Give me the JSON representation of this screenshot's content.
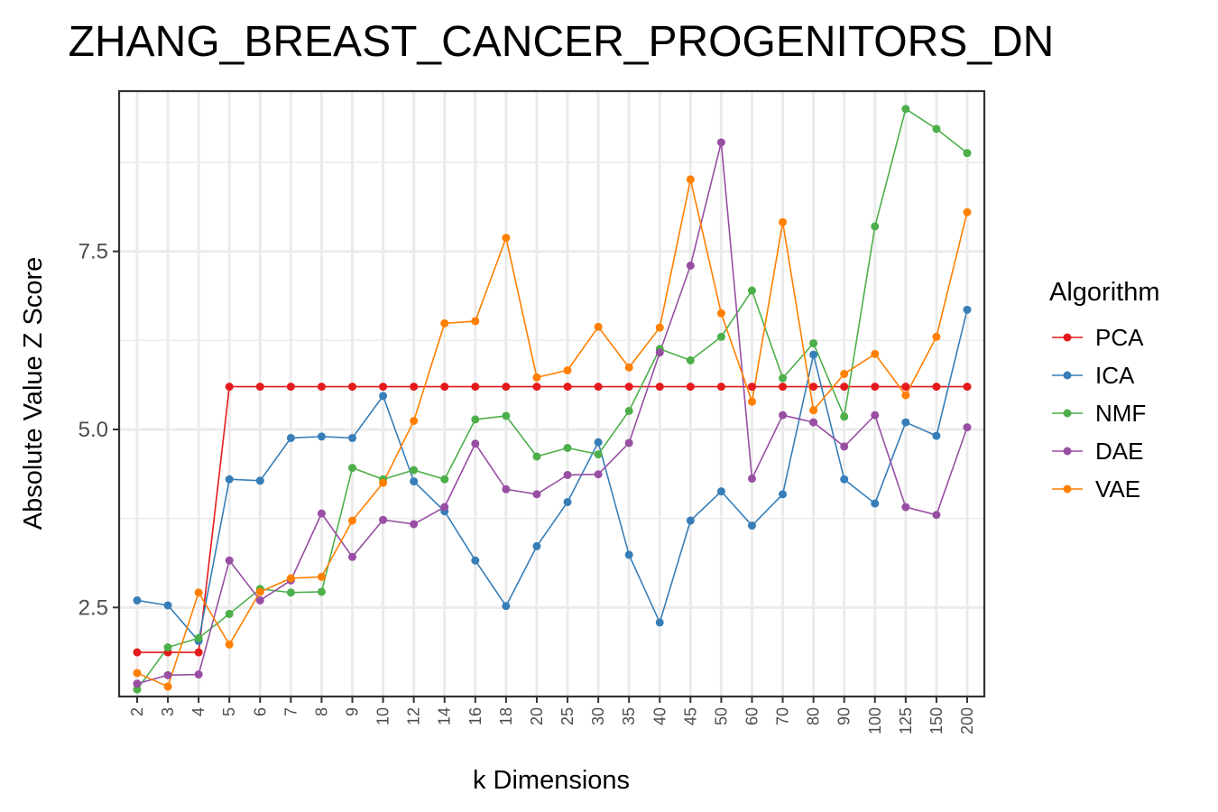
{
  "chart_data": {
    "type": "line",
    "title": "ZHANG_BREAST_CANCER_PROGENITORS_DN",
    "xlabel": "k Dimensions",
    "ylabel": "Absolute Value Z Score",
    "categories": [
      "2",
      "3",
      "4",
      "5",
      "6",
      "7",
      "8",
      "9",
      "10",
      "12",
      "14",
      "16",
      "18",
      "20",
      "25",
      "30",
      "35",
      "40",
      "45",
      "50",
      "60",
      "70",
      "80",
      "90",
      "100",
      "125",
      "150",
      "200"
    ],
    "y_ticks": [
      "2.5",
      "5.0",
      "7.5"
    ],
    "ylim": [
      1.25,
      9.75
    ],
    "grid": true,
    "legend": {
      "title": "Algorithm",
      "position": "right"
    },
    "series": [
      {
        "name": "PCA",
        "color": "#e41a1c",
        "values": [
          1.87,
          1.87,
          1.87,
          5.6,
          5.6,
          5.6,
          5.6,
          5.6,
          5.6,
          5.6,
          5.6,
          5.6,
          5.6,
          5.6,
          5.6,
          5.6,
          5.6,
          5.6,
          5.6,
          5.6,
          5.6,
          5.6,
          5.6,
          5.6,
          5.6,
          5.6,
          5.6,
          5.6
        ]
      },
      {
        "name": "ICA",
        "color": "#377eb8",
        "values": [
          2.6,
          2.53,
          2.03,
          4.3,
          4.28,
          4.88,
          4.9,
          4.88,
          5.47,
          4.27,
          3.85,
          3.16,
          2.52,
          3.36,
          3.98,
          4.82,
          3.24,
          2.29,
          3.72,
          4.13,
          3.65,
          4.09,
          6.05,
          4.3,
          3.96,
          5.1,
          4.91,
          6.68
        ]
      },
      {
        "name": "NMF",
        "color": "#4daf4a",
        "values": [
          1.35,
          1.94,
          2.07,
          2.41,
          2.76,
          2.71,
          2.72,
          4.46,
          4.3,
          4.43,
          4.3,
          5.14,
          5.19,
          4.62,
          4.74,
          4.65,
          5.26,
          6.13,
          5.97,
          6.3,
          6.95,
          5.72,
          6.21,
          5.18,
          7.85,
          9.5,
          9.22,
          8.88
        ]
      },
      {
        "name": "DAE",
        "color": "#984ea3",
        "values": [
          1.43,
          1.55,
          1.56,
          3.16,
          2.6,
          2.88,
          3.82,
          3.21,
          3.73,
          3.67,
          3.91,
          4.8,
          4.16,
          4.09,
          4.36,
          4.37,
          4.81,
          6.08,
          7.3,
          9.03,
          4.31,
          5.2,
          5.1,
          4.76,
          5.2,
          3.91,
          3.8,
          5.03
        ]
      },
      {
        "name": "VAE",
        "color": "#ff7f00",
        "values": [
          1.58,
          1.39,
          2.71,
          1.98,
          2.72,
          2.91,
          2.93,
          3.72,
          4.25,
          5.12,
          6.49,
          6.52,
          7.69,
          5.73,
          5.83,
          6.44,
          5.87,
          6.43,
          8.51,
          6.63,
          5.39,
          7.91,
          5.27,
          5.78,
          6.06,
          5.48,
          6.3,
          8.05
        ]
      }
    ]
  }
}
